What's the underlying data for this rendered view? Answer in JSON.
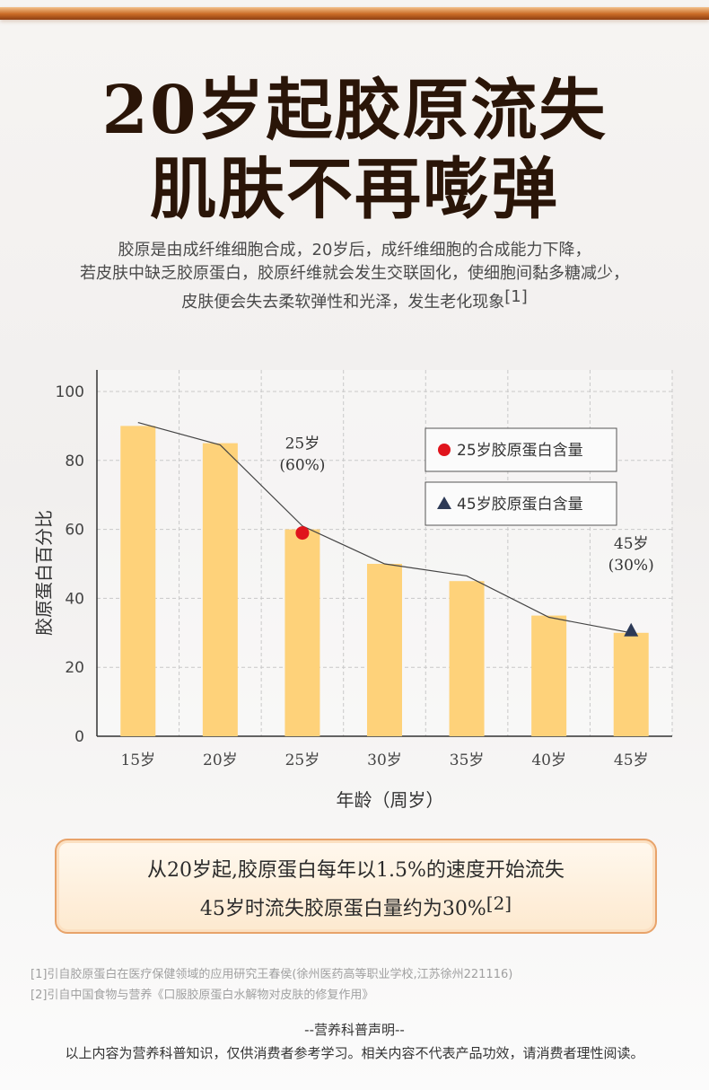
{
  "header": {
    "title_line1": "20岁起胶原流失",
    "title_line2": "肌肤不再嘭弹"
  },
  "description": {
    "line1": "胶原是由成纤维细胞合成，20岁后，成纤维细胞的合成能力下降，",
    "line2": "若皮肤中缺乏胶原蛋白，胶原纤维就会发生交联固化，使细胞间黏多糖减少，",
    "line3": "皮肤便会失去柔软弹性和光泽，发生老化现象",
    "ref_mark": "[1]"
  },
  "chart_data": {
    "type": "bar",
    "categories": [
      "15岁",
      "20岁",
      "25岁",
      "30岁",
      "35岁",
      "40岁",
      "45岁"
    ],
    "values": [
      90,
      85,
      60,
      50,
      45,
      35,
      30
    ],
    "line_values": [
      91,
      84.5,
      61,
      50,
      46.5,
      34.5,
      30
    ],
    "ylabel": "胶原蛋白百分比",
    "xlabel": "年龄（周岁）",
    "ylim": [
      0,
      100
    ],
    "yticks": [
      0,
      20,
      40,
      60,
      80,
      100
    ],
    "grid": true,
    "colors": {
      "bar": "#fed27a",
      "line": "#444444",
      "marker25": "#e0141c",
      "marker45": "#2d3a57"
    },
    "legend": {
      "placement": "top-right",
      "items": [
        {
          "marker": "circle",
          "label": "25岁胶原蛋白含量"
        },
        {
          "marker": "triangle",
          "label": "45岁胶原蛋白含量"
        }
      ]
    },
    "annotations": [
      {
        "category": "25岁",
        "value": 60,
        "line1": "25岁",
        "line2": "(60%)"
      },
      {
        "category": "45岁",
        "value": 30,
        "line1": "45岁",
        "line2": "(30%)"
      }
    ]
  },
  "summary": {
    "line1": "从20岁起,胶原蛋白每年以1.5%的速度开始流失",
    "line2": "45岁时流失胶原蛋白量约为30%",
    "ref_mark": "[2]"
  },
  "references": [
    "[1]引自胶原蛋白在医疗保健领域的应用研究王春侯(徐州医药高等职业学校,江苏徐州221116)",
    "[2]引自中国食物与营养《口服胶原蛋白水解物对皮肤的修复作用》"
  ],
  "declaration": {
    "title": "--营养科普声明--",
    "text": "以上内容为营养科普知识，仅供消费者参考学习。相关内容不代表产品功效，请消费者理性阅读。"
  }
}
